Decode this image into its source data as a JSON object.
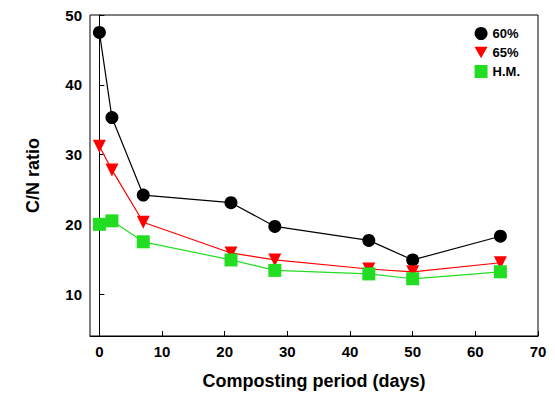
{
  "chart_data": {
    "type": "line",
    "x_label": "Composting period (days)",
    "y_label": "C/N ratio",
    "x": [
      0,
      2,
      7,
      21,
      28,
      43,
      50,
      64
    ],
    "series": [
      {
        "name": "60%",
        "color": "#000000",
        "marker": "circle",
        "values": [
          47.5,
          35.3,
          24.2,
          23.1,
          19.7,
          17.7,
          14.9,
          18.3
        ]
      },
      {
        "name": "65%",
        "color": "#ff0000",
        "marker": "triangle_down",
        "values": [
          31.2,
          27.8,
          20.3,
          15.9,
          14.9,
          13.6,
          13.2,
          14.5
        ]
      },
      {
        "name": "H.M.",
        "color": "#22dd22",
        "marker": "square",
        "values": [
          20.0,
          20.5,
          17.5,
          14.9,
          13.4,
          12.9,
          12.2,
          13.2
        ]
      }
    ],
    "xlim": [
      -1.5,
      70
    ],
    "xticks": [
      0,
      10,
      20,
      30,
      40,
      50,
      60,
      70
    ],
    "ylim": [
      4,
      50
    ],
    "yticks": [
      10,
      20,
      30,
      40,
      50
    ],
    "grid": false,
    "legend": "upper right"
  }
}
